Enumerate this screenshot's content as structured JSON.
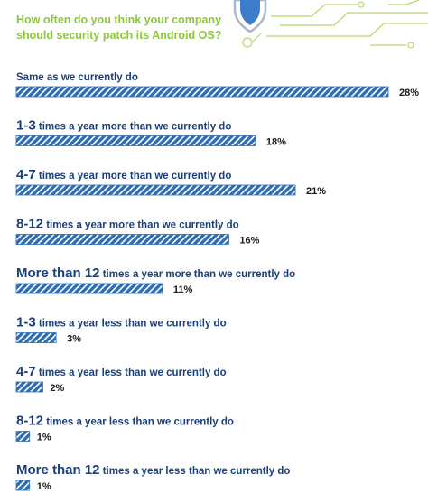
{
  "chart_data": {
    "type": "bar",
    "orientation": "horizontal",
    "title": "How often do you think your company should security patch its Android OS?",
    "categories": [
      {
        "lead": "",
        "rest": "Same as we currently do"
      },
      {
        "lead": "1-3",
        "rest": " times a year more than  we currently do"
      },
      {
        "lead": "4-7",
        "rest": " times a year more than  we currently do"
      },
      {
        "lead": "8-12",
        "rest": " times a year more than  we currently do"
      },
      {
        "lead": "More than 12",
        "rest": " times a year more than  we currently do"
      },
      {
        "lead": "1-3",
        "rest": " times a year less than  we currently do"
      },
      {
        "lead": "4-7",
        "rest": " times a year less than  we currently do"
      },
      {
        "lead": "8-12",
        "rest": " times a year less than  we currently do"
      },
      {
        "lead": "More than 12",
        "rest": " times a year less than  we currently do"
      }
    ],
    "values": [
      28,
      18,
      21,
      16,
      11,
      3,
      2,
      1,
      1
    ],
    "value_labels": [
      "28%",
      "18%",
      "21%",
      "16%",
      "11%",
      "3%",
      "2%",
      "1%",
      "1%"
    ],
    "unit": "%",
    "xlim": [
      0,
      28
    ],
    "grid": false,
    "legend": "none"
  },
  "colors": {
    "bar": "#2e6db4",
    "bar_stripe": "#ffffff",
    "title": "#8cc63f",
    "label": "#1a3f7a",
    "decoration": "#b5d86a"
  },
  "icons": {
    "decoration": "shield-icon"
  }
}
